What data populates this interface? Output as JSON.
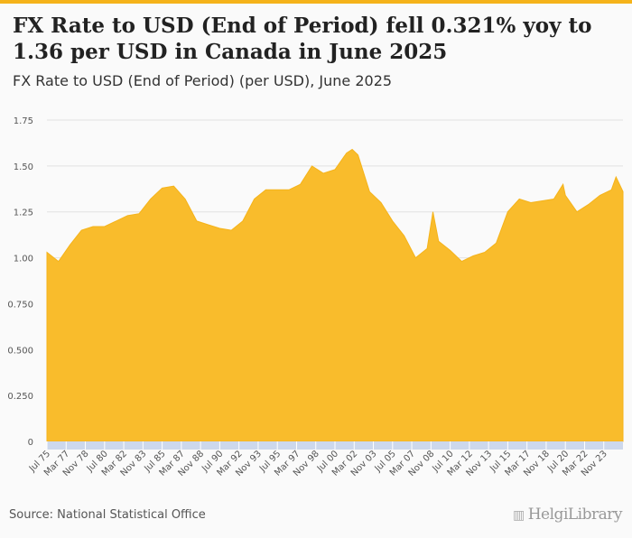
{
  "header": {
    "title": "FX Rate to USD (End of Period) fell 0.321% yoy to 1.36 per USD in Canada in June 2025",
    "subtitle": "FX Rate to USD (End of Period) (per USD), June 2025"
  },
  "footer": {
    "source": "Source: National Statistical Office",
    "logo": "HelgiLibrary"
  },
  "colors": {
    "area": "#f9bc2c",
    "accent": "#f5b31a",
    "band": "#cdd8ec"
  },
  "chart_data": {
    "type": "area",
    "title": "FX Rate to USD (End of Period) (per USD), June 2025",
    "xlabel": "",
    "ylabel": "",
    "ylim": [
      0,
      1.75
    ],
    "xlim": [
      1975.5,
      2025.5
    ],
    "grid": true,
    "yticks": [
      "0",
      "0.250",
      "0.500",
      "0.750",
      "1.00",
      "1.25",
      "1.50",
      "1.75"
    ],
    "ytick_values": [
      0,
      0.25,
      0.5,
      0.75,
      1.0,
      1.25,
      1.5,
      1.75
    ],
    "xtick_labels": [
      "Jul 75",
      "Mar 77",
      "Nov 78",
      "Jul 80",
      "Mar 82",
      "Nov 83",
      "Jul 85",
      "Mar 87",
      "Nov 88",
      "Jul 90",
      "Mar 92",
      "Nov 93",
      "Jul 95",
      "Mar 97",
      "Nov 98",
      "Jul 00",
      "Mar 02",
      "Nov 03",
      "Jul 05",
      "Mar 07",
      "Nov 08",
      "Jul 10",
      "Mar 12",
      "Nov 13",
      "Jul 15",
      "Mar 17",
      "Nov 18",
      "Jul 20",
      "Mar 22",
      "Nov 23"
    ],
    "x": [
      1975.5,
      1976.5,
      1977.5,
      1978.5,
      1979.5,
      1980.5,
      1981.5,
      1982.5,
      1983.5,
      1984.5,
      1985.5,
      1986.5,
      1987.5,
      1988.5,
      1989.5,
      1990.5,
      1991.5,
      1992.5,
      1993.5,
      1994.5,
      1995.5,
      1996.5,
      1997.5,
      1998.5,
      1999.5,
      2000.5,
      2001.5,
      2002.0,
      2002.5,
      2003.5,
      2004.5,
      2005.5,
      2006.5,
      2007.5,
      2008.5,
      2009.0,
      2009.5,
      2010.5,
      2011.5,
      2012.5,
      2013.5,
      2014.5,
      2015.5,
      2016.5,
      2017.5,
      2018.5,
      2019.5,
      2020.3,
      2020.5,
      2021.5,
      2022.5,
      2023.5,
      2024.5,
      2024.9,
      2025.5
    ],
    "values": [
      1.03,
      0.98,
      1.07,
      1.15,
      1.17,
      1.17,
      1.2,
      1.23,
      1.24,
      1.32,
      1.38,
      1.39,
      1.32,
      1.2,
      1.18,
      1.16,
      1.15,
      1.2,
      1.32,
      1.37,
      1.37,
      1.37,
      1.4,
      1.5,
      1.46,
      1.48,
      1.57,
      1.59,
      1.56,
      1.36,
      1.3,
      1.2,
      1.12,
      1.0,
      1.05,
      1.25,
      1.09,
      1.04,
      0.98,
      1.01,
      1.03,
      1.08,
      1.25,
      1.32,
      1.3,
      1.31,
      1.32,
      1.4,
      1.34,
      1.25,
      1.29,
      1.34,
      1.37,
      1.44,
      1.36
    ]
  }
}
